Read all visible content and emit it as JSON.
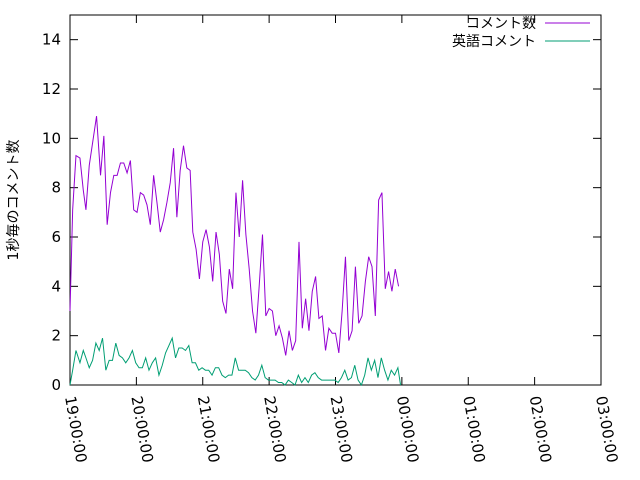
{
  "chart_data": {
    "type": "line",
    "ylabel": "1秒毎のコメント数",
    "ylim": [
      0,
      15
    ],
    "yticks": [
      0,
      2,
      4,
      6,
      8,
      10,
      12,
      14
    ],
    "yticks_labels": [
      "0",
      "2",
      "4",
      "6",
      "8",
      "10",
      "12",
      "14"
    ],
    "xlim": [
      "19:00:00",
      "03:00:00"
    ],
    "xticks_labels": [
      "19:00:00",
      "20:00:00",
      "21:00:00",
      "22:00:00",
      "23:00:00",
      "00:00:00",
      "01:00:00",
      "02:00:00",
      "03:00:00"
    ],
    "legend_position": "top-right",
    "grid": false,
    "series": [
      {
        "name": "コメント数",
        "color": "#9400d3",
        "points": [
          [
            "19:00:00",
            3.0
          ],
          [
            "19:02:24",
            7.1
          ],
          [
            "19:05:24",
            9.3
          ],
          [
            "19:09:00",
            9.2
          ],
          [
            "19:12:00",
            7.9
          ],
          [
            "19:14:24",
            7.1
          ],
          [
            "19:17:24",
            8.9
          ],
          [
            "19:24:00",
            10.9
          ],
          [
            "19:27:36",
            8.5
          ],
          [
            "19:30:36",
            10.1
          ],
          [
            "19:33:36",
            6.5
          ],
          [
            "19:36:36",
            7.8
          ],
          [
            "19:39:36",
            8.5
          ],
          [
            "19:42:36",
            8.5
          ],
          [
            "19:45:36",
            9.0
          ],
          [
            "19:48:36",
            9.0
          ],
          [
            "19:51:36",
            8.6
          ],
          [
            "19:54:36",
            9.1
          ],
          [
            "19:57:36",
            7.1
          ],
          [
            "20:00:36",
            7.0
          ],
          [
            "20:03:36",
            7.8
          ],
          [
            "20:06:36",
            7.7
          ],
          [
            "20:09:36",
            7.3
          ],
          [
            "20:12:36",
            6.5
          ],
          [
            "20:15:36",
            8.5
          ],
          [
            "20:18:36",
            7.4
          ],
          [
            "20:21:36",
            6.2
          ],
          [
            "20:24:36",
            6.7
          ],
          [
            "20:27:36",
            7.4
          ],
          [
            "20:30:36",
            8.2
          ],
          [
            "20:33:36",
            9.6
          ],
          [
            "20:36:36",
            6.8
          ],
          [
            "20:39:36",
            8.7
          ],
          [
            "20:42:36",
            9.7
          ],
          [
            "20:45:36",
            8.8
          ],
          [
            "20:48:36",
            8.7
          ],
          [
            "20:51:00",
            6.2
          ],
          [
            "20:54:00",
            5.5
          ],
          [
            "20:57:00",
            4.3
          ],
          [
            "21:00:00",
            5.8
          ],
          [
            "21:03:00",
            6.3
          ],
          [
            "21:06:00",
            5.6
          ],
          [
            "21:09:00",
            4.2
          ],
          [
            "21:12:00",
            6.2
          ],
          [
            "21:15:00",
            5.3
          ],
          [
            "21:18:00",
            3.4
          ],
          [
            "21:21:00",
            2.9
          ],
          [
            "21:24:00",
            4.7
          ],
          [
            "21:27:00",
            3.9
          ],
          [
            "21:30:00",
            7.8
          ],
          [
            "21:33:00",
            6.0
          ],
          [
            "21:36:00",
            8.3
          ],
          [
            "21:39:00",
            6.1
          ],
          [
            "21:42:00",
            4.7
          ],
          [
            "21:45:00",
            3.0
          ],
          [
            "21:48:00",
            2.1
          ],
          [
            "21:51:00",
            4.0
          ],
          [
            "21:54:00",
            6.1
          ],
          [
            "21:57:00",
            2.8
          ],
          [
            "22:00:00",
            3.1
          ],
          [
            "22:03:00",
            3.0
          ],
          [
            "22:06:00",
            2.0
          ],
          [
            "22:09:00",
            2.4
          ],
          [
            "22:12:00",
            1.9
          ],
          [
            "22:15:00",
            1.2
          ],
          [
            "22:18:00",
            2.2
          ],
          [
            "22:21:00",
            1.4
          ],
          [
            "22:24:00",
            1.8
          ],
          [
            "22:27:00",
            5.8
          ],
          [
            "22:30:00",
            2.3
          ],
          [
            "22:33:00",
            3.5
          ],
          [
            "22:36:00",
            2.2
          ],
          [
            "22:39:00",
            3.8
          ],
          [
            "22:42:00",
            4.4
          ],
          [
            "22:45:00",
            2.7
          ],
          [
            "22:48:00",
            2.8
          ],
          [
            "22:51:00",
            1.4
          ],
          [
            "22:54:00",
            2.3
          ],
          [
            "22:57:00",
            2.1
          ],
          [
            "23:00:00",
            2.1
          ],
          [
            "23:03:00",
            1.3
          ],
          [
            "23:06:00",
            3.0
          ],
          [
            "23:09:00",
            5.2
          ],
          [
            "23:12:00",
            1.8
          ],
          [
            "23:15:00",
            2.2
          ],
          [
            "23:18:00",
            4.8
          ],
          [
            "23:21:00",
            2.5
          ],
          [
            "23:24:00",
            2.8
          ],
          [
            "23:27:00",
            4.2
          ],
          [
            "23:30:00",
            5.2
          ],
          [
            "23:33:00",
            4.8
          ],
          [
            "23:36:00",
            2.8
          ],
          [
            "23:39:00",
            7.5
          ],
          [
            "23:42:00",
            7.8
          ],
          [
            "23:45:00",
            3.9
          ],
          [
            "23:48:00",
            4.6
          ],
          [
            "23:51:00",
            3.8
          ],
          [
            "23:54:00",
            4.7
          ],
          [
            "23:57:00",
            4.0
          ]
        ]
      },
      {
        "name": "英語コメント",
        "color": "#009e73",
        "points": [
          [
            "19:00:00",
            0.0
          ],
          [
            "19:02:24",
            0.6
          ],
          [
            "19:05:24",
            1.4
          ],
          [
            "19:09:00",
            0.9
          ],
          [
            "19:12:00",
            1.4
          ],
          [
            "19:14:24",
            1.1
          ],
          [
            "19:17:24",
            0.7
          ],
          [
            "19:20:24",
            1.0
          ],
          [
            "19:23:24",
            1.7
          ],
          [
            "19:26:24",
            1.4
          ],
          [
            "19:29:24",
            1.9
          ],
          [
            "19:32:24",
            0.6
          ],
          [
            "19:35:24",
            1.0
          ],
          [
            "19:38:24",
            1.0
          ],
          [
            "19:41:24",
            1.7
          ],
          [
            "19:44:24",
            1.2
          ],
          [
            "19:47:24",
            1.1
          ],
          [
            "19:50:24",
            0.9
          ],
          [
            "19:53:24",
            1.1
          ],
          [
            "19:56:24",
            1.4
          ],
          [
            "19:59:24",
            0.9
          ],
          [
            "20:02:24",
            0.7
          ],
          [
            "20:05:24",
            0.7
          ],
          [
            "20:08:24",
            1.1
          ],
          [
            "20:11:24",
            0.6
          ],
          [
            "20:14:24",
            0.9
          ],
          [
            "20:17:24",
            1.1
          ],
          [
            "20:20:24",
            0.4
          ],
          [
            "20:23:24",
            0.8
          ],
          [
            "20:26:24",
            1.3
          ],
          [
            "20:29:24",
            1.6
          ],
          [
            "20:32:24",
            1.9
          ],
          [
            "20:35:24",
            1.1
          ],
          [
            "20:38:24",
            1.5
          ],
          [
            "20:41:24",
            1.5
          ],
          [
            "20:44:24",
            1.4
          ],
          [
            "20:47:24",
            1.6
          ],
          [
            "20:50:24",
            0.9
          ],
          [
            "20:53:24",
            0.9
          ],
          [
            "20:56:24",
            0.6
          ],
          [
            "20:59:24",
            0.7
          ],
          [
            "21:02:24",
            0.6
          ],
          [
            "21:05:24",
            0.6
          ],
          [
            "21:08:24",
            0.4
          ],
          [
            "21:11:24",
            0.7
          ],
          [
            "21:14:24",
            0.7
          ],
          [
            "21:17:24",
            0.4
          ],
          [
            "21:20:24",
            0.3
          ],
          [
            "21:23:24",
            0.4
          ],
          [
            "21:26:24",
            0.4
          ],
          [
            "21:29:24",
            1.1
          ],
          [
            "21:32:24",
            0.6
          ],
          [
            "21:35:24",
            0.6
          ],
          [
            "21:38:24",
            0.6
          ],
          [
            "21:41:24",
            0.5
          ],
          [
            "21:44:24",
            0.3
          ],
          [
            "21:47:24",
            0.2
          ],
          [
            "21:50:24",
            0.4
          ],
          [
            "21:53:24",
            0.8
          ],
          [
            "21:56:24",
            0.3
          ],
          [
            "21:59:24",
            0.2
          ],
          [
            "22:02:24",
            0.2
          ],
          [
            "22:05:24",
            0.2
          ],
          [
            "22:08:24",
            0.1
          ],
          [
            "22:11:24",
            0.1
          ],
          [
            "22:14:24",
            0.0
          ],
          [
            "22:17:24",
            0.2
          ],
          [
            "22:20:24",
            0.1
          ],
          [
            "22:23:24",
            0.0
          ],
          [
            "22:26:24",
            0.4
          ],
          [
            "22:29:24",
            0.1
          ],
          [
            "22:32:24",
            0.3
          ],
          [
            "22:35:24",
            0.1
          ],
          [
            "22:38:24",
            0.4
          ],
          [
            "22:41:24",
            0.5
          ],
          [
            "22:44:24",
            0.3
          ],
          [
            "22:47:24",
            0.2
          ],
          [
            "22:50:24",
            0.2
          ],
          [
            "22:53:24",
            0.2
          ],
          [
            "22:56:24",
            0.2
          ],
          [
            "22:59:24",
            0.2
          ],
          [
            "23:02:24",
            0.1
          ],
          [
            "23:05:24",
            0.3
          ],
          [
            "23:08:24",
            0.6
          ],
          [
            "23:11:24",
            0.2
          ],
          [
            "23:14:24",
            0.3
          ],
          [
            "23:17:24",
            0.8
          ],
          [
            "23:20:24",
            0.2
          ],
          [
            "23:23:24",
            0.0
          ],
          [
            "23:26:24",
            0.4
          ],
          [
            "23:29:24",
            1.1
          ],
          [
            "23:32:24",
            0.6
          ],
          [
            "23:35:24",
            1.0
          ],
          [
            "23:38:24",
            0.3
          ],
          [
            "23:41:24",
            1.1
          ],
          [
            "23:44:24",
            0.6
          ],
          [
            "23:47:24",
            0.2
          ],
          [
            "23:50:24",
            0.6
          ],
          [
            "23:53:24",
            0.4
          ],
          [
            "23:56:24",
            0.7
          ],
          [
            "23:58:48",
            0.0
          ]
        ]
      }
    ]
  }
}
